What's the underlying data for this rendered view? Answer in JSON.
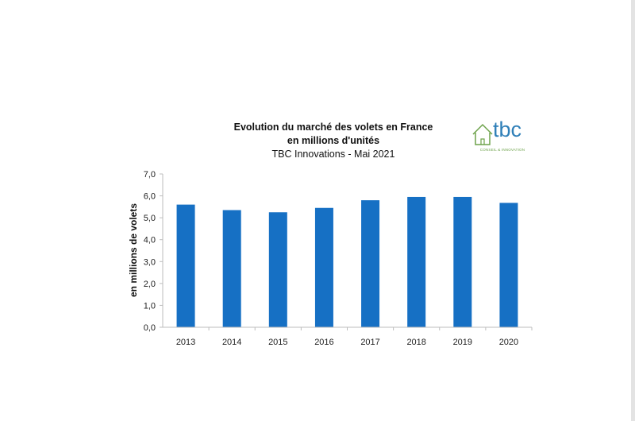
{
  "logo": {
    "name": "tbc",
    "tagline": "CONSEIL & INNOVATION",
    "colors": {
      "house": "#6da24a",
      "text": "#2f7fb8"
    }
  },
  "chart_data": {
    "type": "bar",
    "title": "Evolution du marché des volets en France",
    "subtitle": "en millions d'unités",
    "source": "TBC Innovations - Mai 2021",
    "xlabel": "",
    "ylabel": "en millions de volets",
    "categories": [
      "2013",
      "2014",
      "2015",
      "2016",
      "2017",
      "2018",
      "2019",
      "2020"
    ],
    "values": [
      5.6,
      5.35,
      5.25,
      5.45,
      5.8,
      5.95,
      5.95,
      5.68
    ],
    "ylim": [
      0,
      7
    ],
    "yticks": [
      "0,0",
      "1,0",
      "2,0",
      "3,0",
      "4,0",
      "5,0",
      "6,0",
      "7,0"
    ],
    "bar_color": "#1670c4",
    "grid": false,
    "legend": "none"
  }
}
